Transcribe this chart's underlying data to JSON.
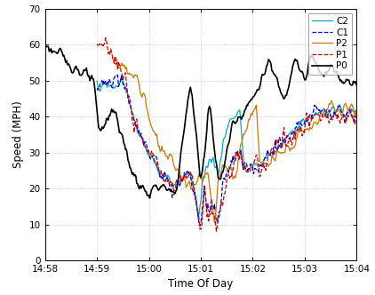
{
  "title": "",
  "xlabel": "Time Of Day",
  "ylabel": "Speed (MPH)",
  "xlim_minutes": [
    0,
    6
  ],
  "ylim": [
    0,
    70
  ],
  "yticks": [
    0,
    10,
    20,
    30,
    40,
    50,
    60,
    70
  ],
  "xtick_labels": [
    "14:58",
    "14:59",
    "15:00",
    "15:01",
    "15:02",
    "15:03",
    "15:04"
  ],
  "bg_color": "#ffffff",
  "grid_color": "#b0b0b0",
  "lines": {
    "P0": {
      "color": "#000000",
      "lw": 1.2,
      "ls": "-",
      "zorder": 5
    },
    "P1": {
      "color": "#cc0000",
      "lw": 0.9,
      "ls": "--",
      "zorder": 4
    },
    "P2": {
      "color": "#cc7700",
      "lw": 0.9,
      "ls": "-",
      "zorder": 3
    },
    "C1": {
      "color": "#0000cc",
      "lw": 0.9,
      "ls": "--",
      "zorder": 2
    },
    "C2": {
      "color": "#00aacc",
      "lw": 0.9,
      "ls": "-",
      "zorder": 1
    }
  }
}
